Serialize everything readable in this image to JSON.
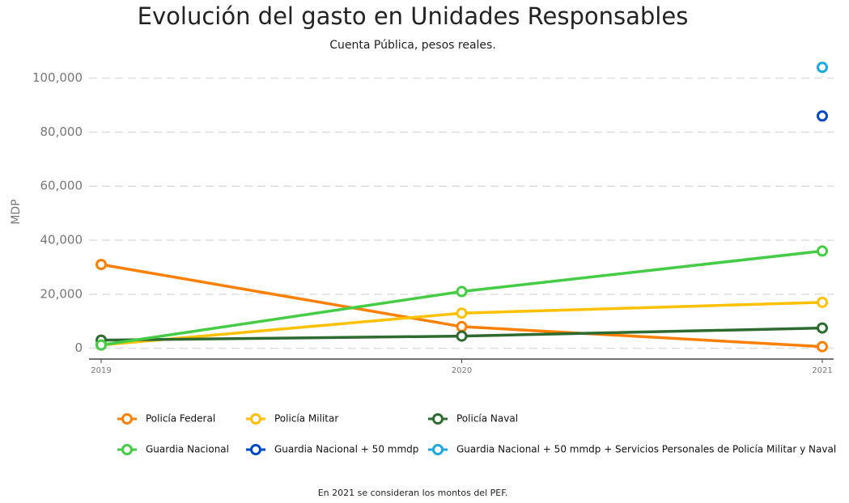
{
  "chart_data": {
    "type": "line",
    "title": "Evolución del gasto en Unidades Responsables",
    "subtitle": "Cuenta Pública, pesos reales.",
    "y_label": "MDP",
    "note": "En 2021 se consideran los montos del PEF.",
    "categories": [
      "2019",
      "2020",
      "2021"
    ],
    "ylim": [
      -4000,
      106000
    ],
    "yticks": [
      0,
      {
        "value": 20000,
        "label": "20,000"
      },
      {
        "value": 40000,
        "label": "40,000"
      },
      {
        "value": 60000,
        "label": "60,000"
      },
      {
        "value": 80000,
        "label": "80,000"
      },
      {
        "value": 100000,
        "label": "100,000"
      }
    ],
    "grid": true,
    "legend": "bottom",
    "series": [
      {
        "name": "Policía Federal",
        "color": "#ff8000",
        "values": [
          31000,
          8000,
          600
        ]
      },
      {
        "name": "Policía Militar",
        "color": "#ffc000",
        "values": [
          1200,
          13000,
          17000
        ]
      },
      {
        "name": "Policía Naval",
        "color": "#2e6b30",
        "values": [
          3000,
          4500,
          7500
        ]
      },
      {
        "name": "Guardia Nacional",
        "color": "#44cc44",
        "values": [
          1200,
          21000,
          36000
        ]
      },
      {
        "name": "Guardia Nacional + 50 mmdp",
        "color": "#0047c8",
        "values": [
          null,
          null,
          86000
        ]
      },
      {
        "name": "Guardia Nacional + 50 mmdp + Servicios Personales de Policía Militar y Naval",
        "color": "#1ba8e0",
        "values": [
          null,
          null,
          104000
        ]
      }
    ]
  }
}
